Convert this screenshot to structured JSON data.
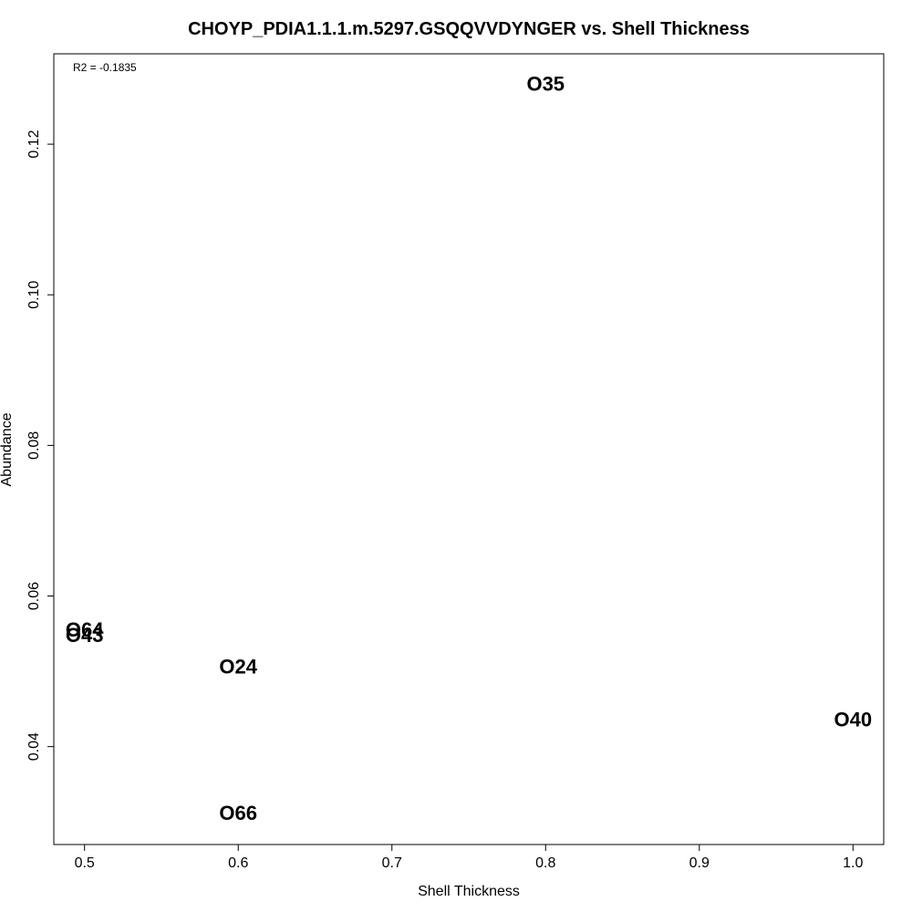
{
  "chart_data": {
    "type": "scatter",
    "title": "CHOYP_PDIA1.1.1.m.5297.GSQQVVDYNGER vs. Shell Thickness",
    "xlabel": "Shell Thickness",
    "ylabel": "Abundance",
    "xlim": [
      0.48,
      1.02
    ],
    "ylim": [
      0.027,
      0.132
    ],
    "x_ticks": [
      0.5,
      0.6,
      0.7,
      0.8,
      0.9,
      1.0
    ],
    "x_tick_labels": [
      "0.5",
      "0.6",
      "0.7",
      "0.8",
      "0.9",
      "1.0"
    ],
    "y_ticks": [
      0.04,
      0.06,
      0.08,
      0.1,
      0.12
    ],
    "y_tick_labels": [
      "0.04",
      "0.06",
      "0.08",
      "0.10",
      "0.12"
    ],
    "annotation": "R2 = -0.1835",
    "grid": false,
    "marker": "text-label",
    "points": [
      {
        "label": "O35",
        "x": 0.8,
        "y": 0.128
      },
      {
        "label": "O64",
        "x": 0.5,
        "y": 0.0555
      },
      {
        "label": "O43",
        "x": 0.5,
        "y": 0.0548
      },
      {
        "label": "O24",
        "x": 0.6,
        "y": 0.0506
      },
      {
        "label": "O40",
        "x": 1.0,
        "y": 0.0436
      },
      {
        "label": "O66",
        "x": 0.6,
        "y": 0.0312
      }
    ]
  }
}
